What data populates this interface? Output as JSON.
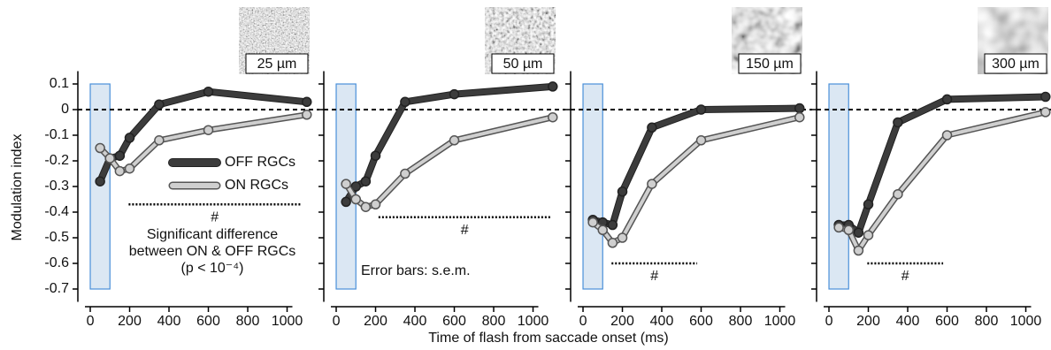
{
  "axis_labels": {
    "x": "Time of flash from saccade onset (ms)",
    "y": "Modulation index"
  },
  "chart_data": [
    {
      "type": "line",
      "image_label": "25 µm",
      "x": [
        50,
        100,
        150,
        200,
        350,
        600,
        1100
      ],
      "series": [
        {
          "name": "OFF RGCs",
          "color": "#3c3c3c",
          "values": [
            -0.28,
            -0.19,
            -0.18,
            -0.11,
            0.02,
            0.07,
            0.03
          ]
        },
        {
          "name": "ON RGCs",
          "color": "#cfcfcf",
          "values": [
            -0.15,
            -0.19,
            -0.24,
            -0.23,
            -0.12,
            -0.08,
            -0.02
          ]
        }
      ],
      "xlim": [
        -63,
        1128
      ],
      "ylim": [
        -0.75,
        0.15
      ],
      "xticks": [
        0,
        200,
        400,
        600,
        800,
        1000
      ],
      "yticks": [
        0.1,
        0,
        -0.1,
        -0.2,
        -0.3,
        -0.4,
        -0.5,
        -0.6,
        -0.7
      ],
      "reference_line": 0,
      "highlight": {
        "x": [
          0,
          100
        ],
        "y": [
          -0.7,
          0.1
        ]
      },
      "significance": {
        "x": [
          195,
          1070
        ],
        "y": -0.37,
        "label": "#"
      },
      "notes": [
        "Significant difference",
        "between ON & OFF RGCs",
        "(p < 10⁻⁴)"
      ]
    },
    {
      "type": "line",
      "image_label": "50 µm",
      "x": [
        50,
        100,
        150,
        200,
        350,
        600,
        1100
      ],
      "series": [
        {
          "color": "#3c3c3c",
          "values": [
            -0.36,
            -0.3,
            -0.28,
            -0.18,
            0.03,
            0.06,
            0.09
          ]
        },
        {
          "color": "#cfcfcf",
          "values": [
            -0.29,
            -0.35,
            -0.38,
            -0.37,
            -0.25,
            -0.12,
            -0.03
          ]
        }
      ],
      "xlim": [
        -63,
        1128
      ],
      "ylim": [
        -0.75,
        0.15
      ],
      "xticks": [
        0,
        200,
        400,
        600,
        800,
        1000
      ],
      "reference_line": 0,
      "highlight": {
        "x": [
          0,
          100
        ],
        "y": [
          -0.7,
          0.1
        ]
      },
      "significance": {
        "x": [
          215,
          1090
        ],
        "y": -0.42,
        "label": "#"
      },
      "note": "Error bars: s.e.m."
    },
    {
      "type": "line",
      "image_label": "150 µm",
      "x": [
        50,
        100,
        150,
        200,
        350,
        600,
        1100
      ],
      "series": [
        {
          "color": "#3c3c3c",
          "values": [
            -0.43,
            -0.44,
            -0.45,
            -0.32,
            -0.07,
            0,
            0.005
          ]
        },
        {
          "color": "#cfcfcf",
          "values": [
            -0.44,
            -0.47,
            -0.52,
            -0.5,
            -0.29,
            -0.12,
            -0.03
          ]
        }
      ],
      "xlim": [
        -63,
        1128
      ],
      "ylim": [
        -0.75,
        0.15
      ],
      "xticks": [
        0,
        200,
        400,
        600,
        800,
        1000
      ],
      "reference_line": 0,
      "highlight": {
        "x": [
          0,
          100
        ],
        "y": [
          -0.7,
          0.1
        ]
      },
      "significance": {
        "x": [
          145,
          580
        ],
        "y": -0.6,
        "label": "#"
      }
    },
    {
      "type": "line",
      "image_label": "300 µm",
      "x": [
        50,
        100,
        150,
        200,
        350,
        600,
        1100
      ],
      "series": [
        {
          "color": "#3c3c3c",
          "values": [
            -0.45,
            -0.45,
            -0.48,
            -0.37,
            -0.05,
            0.04,
            0.05
          ]
        },
        {
          "color": "#cfcfcf",
          "values": [
            -0.46,
            -0.47,
            -0.55,
            -0.49,
            -0.33,
            -0.1,
            -0.01
          ]
        }
      ],
      "xlim": [
        -63,
        1128
      ],
      "ylim": [
        -0.75,
        0.15
      ],
      "xticks": [
        0,
        200,
        400,
        600,
        800,
        1000
      ],
      "reference_line": 0,
      "highlight": {
        "x": [
          0,
          100
        ],
        "y": [
          -0.7,
          0.1
        ]
      },
      "significance": {
        "x": [
          195,
          580
        ],
        "y": -0.6,
        "label": "#"
      }
    }
  ]
}
